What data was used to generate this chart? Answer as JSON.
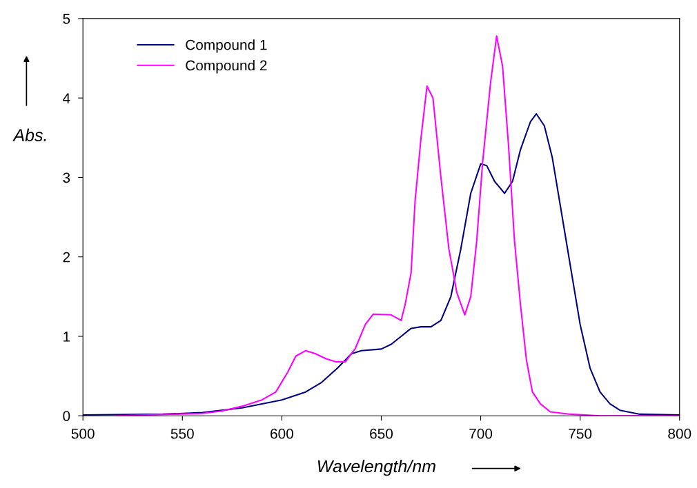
{
  "chart_data": {
    "type": "line",
    "xlabel": "Wavelength/nm",
    "ylabel": "Abs.",
    "xlim": [
      500,
      800
    ],
    "xticks": [
      500,
      550,
      600,
      650,
      700,
      750,
      800
    ],
    "ylim": [
      0,
      5
    ],
    "yticks": [
      0,
      1,
      2,
      3,
      4,
      5
    ],
    "grid": false,
    "legend": "top left",
    "marker": "none",
    "line_style": "solid",
    "series": [
      {
        "name": "Compound 1",
        "color": "#000080",
        "x": [
          500,
          540,
          560,
          580,
          600,
          612,
          620,
          628,
          635,
          640,
          650,
          655,
          660,
          665,
          670,
          675,
          680,
          685,
          690,
          695,
          700,
          703,
          707,
          712,
          716,
          720,
          725,
          728,
          732,
          736,
          740,
          745,
          750,
          755,
          760,
          765,
          770,
          780,
          800
        ],
        "values": [
          0.01,
          0.02,
          0.04,
          0.1,
          0.2,
          0.3,
          0.42,
          0.6,
          0.78,
          0.82,
          0.84,
          0.9,
          1.0,
          1.1,
          1.12,
          1.12,
          1.2,
          1.5,
          2.1,
          2.8,
          3.17,
          3.15,
          2.95,
          2.8,
          2.95,
          3.35,
          3.7,
          3.8,
          3.65,
          3.25,
          2.65,
          1.9,
          1.15,
          0.6,
          0.3,
          0.15,
          0.07,
          0.02,
          0.01
        ]
      },
      {
        "name": "Compound 2",
        "color": "#ff00ff",
        "x": [
          517,
          560,
          570,
          580,
          590,
          597,
          603,
          607,
          612,
          617,
          622,
          627,
          632,
          637,
          642,
          646,
          655,
          660,
          662,
          665,
          667,
          670,
          673,
          676,
          680,
          684,
          688,
          692,
          695,
          698,
          701,
          705,
          708,
          711,
          714,
          717,
          720,
          723,
          726,
          730,
          735,
          745,
          760,
          800
        ],
        "values": [
          0,
          0.03,
          0.06,
          0.12,
          0.2,
          0.3,
          0.55,
          0.75,
          0.82,
          0.78,
          0.72,
          0.68,
          0.68,
          0.85,
          1.15,
          1.28,
          1.27,
          1.2,
          1.4,
          1.8,
          2.7,
          3.5,
          4.15,
          4.0,
          3.0,
          2.1,
          1.55,
          1.27,
          1.5,
          2.2,
          3.2,
          4.2,
          4.78,
          4.4,
          3.4,
          2.2,
          1.4,
          0.7,
          0.3,
          0.15,
          0.05,
          0.02,
          0,
          0
        ]
      }
    ]
  }
}
